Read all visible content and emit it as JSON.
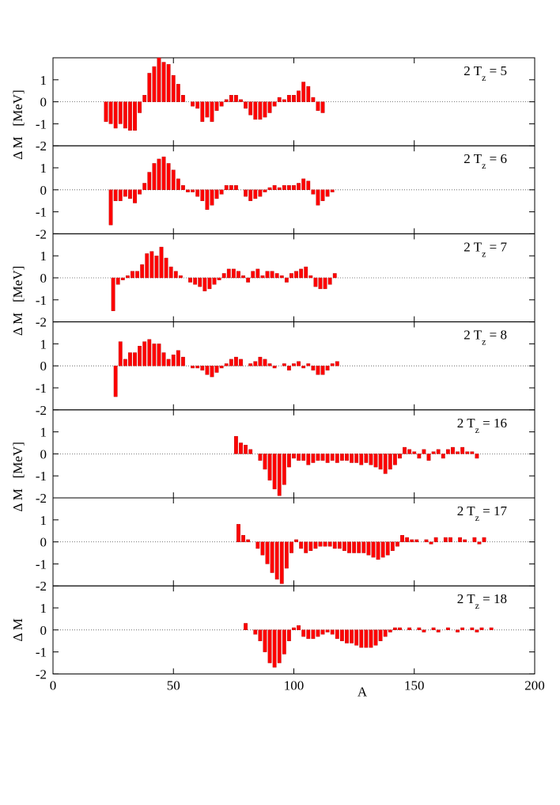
{
  "chart_data": [
    {
      "type": "bar",
      "title": "2 Tz = 5",
      "ylabel": "Δ M   [MeV]",
      "color": "#ff0000",
      "x": [
        22,
        24,
        26,
        28,
        30,
        32,
        34,
        36,
        38,
        40,
        42,
        44,
        46,
        48,
        50,
        52,
        54,
        56,
        58,
        60,
        62,
        64,
        66,
        68,
        70,
        72,
        74,
        76,
        78,
        80,
        82,
        84,
        86,
        88,
        90,
        92,
        94,
        96,
        98,
        100,
        102,
        104,
        106,
        108,
        110,
        112
      ],
      "values": [
        -0.9,
        -1.0,
        -1.2,
        -1.0,
        -1.2,
        -1.3,
        -1.3,
        -0.5,
        0.3,
        1.3,
        1.6,
        2.0,
        1.8,
        1.7,
        1.2,
        0.8,
        0.3,
        0.0,
        -0.2,
        -0.3,
        -0.9,
        -0.7,
        -0.9,
        -0.4,
        -0.2,
        0.1,
        0.3,
        0.3,
        0.1,
        -0.3,
        -0.6,
        -0.8,
        -0.8,
        -0.7,
        -0.5,
        -0.2,
        0.2,
        0.1,
        0.3,
        0.3,
        0.5,
        0.9,
        0.7,
        0.2,
        -0.4,
        -0.5
      ],
      "xlim": [
        0,
        200
      ],
      "xticks": [
        0,
        50,
        100,
        150,
        200
      ],
      "ylim": [
        -2,
        2
      ],
      "yticks": [
        -2,
        -1,
        0,
        1
      ],
      "zero_line": true
    },
    {
      "type": "bar",
      "title": "2 Tz = 6",
      "color": "#ff0000",
      "x": [
        24,
        26,
        28,
        30,
        32,
        34,
        36,
        38,
        40,
        42,
        44,
        46,
        48,
        50,
        52,
        54,
        56,
        58,
        60,
        62,
        64,
        66,
        68,
        70,
        72,
        74,
        76,
        78,
        80,
        82,
        84,
        86,
        88,
        90,
        92,
        94,
        96,
        98,
        100,
        102,
        104,
        106,
        108,
        110,
        112,
        114,
        116
      ],
      "values": [
        -1.6,
        -0.5,
        -0.5,
        -0.3,
        -0.4,
        -0.6,
        -0.2,
        0.3,
        0.8,
        1.2,
        1.4,
        1.5,
        1.2,
        0.9,
        0.5,
        0.2,
        -0.1,
        -0.1,
        -0.3,
        -0.5,
        -0.9,
        -0.7,
        -0.4,
        -0.2,
        0.2,
        0.2,
        0.2,
        0.0,
        -0.3,
        -0.5,
        -0.4,
        -0.3,
        -0.1,
        0.1,
        0.2,
        0.1,
        0.2,
        0.2,
        0.2,
        0.3,
        0.5,
        0.4,
        -0.2,
        -0.7,
        -0.5,
        -0.3,
        -0.1
      ],
      "xlim": [
        0,
        200
      ],
      "xticks": [
        0,
        50,
        100,
        150,
        200
      ],
      "ylim": [
        -2,
        2
      ],
      "yticks": [
        -2,
        -1,
        0,
        1
      ],
      "zero_line": true
    },
    {
      "type": "bar",
      "title": "2 Tz = 7",
      "ylabel": "Δ M   [MeV]",
      "color": "#ff0000",
      "x": [
        25,
        27,
        29,
        31,
        33,
        35,
        37,
        39,
        41,
        43,
        45,
        47,
        49,
        51,
        53,
        55,
        57,
        59,
        61,
        63,
        65,
        67,
        69,
        71,
        73,
        75,
        77,
        79,
        81,
        83,
        85,
        87,
        89,
        91,
        93,
        95,
        97,
        99,
        101,
        103,
        105,
        107,
        109,
        111,
        113,
        115,
        117
      ],
      "values": [
        -1.5,
        -0.3,
        -0.1,
        0.1,
        0.3,
        0.3,
        0.6,
        1.1,
        1.2,
        1.0,
        1.4,
        0.9,
        0.5,
        0.3,
        0.1,
        0.0,
        -0.2,
        -0.3,
        -0.4,
        -0.6,
        -0.5,
        -0.3,
        -0.1,
        0.2,
        0.4,
        0.4,
        0.3,
        0.1,
        -0.2,
        0.3,
        0.4,
        0.1,
        0.3,
        0.3,
        0.2,
        0.1,
        -0.2,
        0.2,
        0.3,
        0.4,
        0.5,
        0.1,
        -0.4,
        -0.5,
        -0.5,
        -0.3,
        0.2
      ],
      "xlim": [
        0,
        200
      ],
      "xticks": [
        0,
        50,
        100,
        150,
        200
      ],
      "ylim": [
        -2,
        2
      ],
      "yticks": [
        -2,
        -1,
        0,
        1
      ],
      "zero_line": true
    },
    {
      "type": "bar",
      "title": "2 Tz = 8",
      "color": "#ff0000",
      "x": [
        26,
        28,
        30,
        32,
        34,
        36,
        38,
        40,
        42,
        44,
        46,
        48,
        50,
        52,
        54,
        56,
        58,
        60,
        62,
        64,
        66,
        68,
        70,
        72,
        74,
        76,
        78,
        80,
        82,
        84,
        86,
        88,
        90,
        92,
        94,
        96,
        98,
        100,
        102,
        104,
        106,
        108,
        110,
        112,
        114,
        116,
        118
      ],
      "values": [
        -1.4,
        1.1,
        0.3,
        0.6,
        0.6,
        0.9,
        1.1,
        1.2,
        1.0,
        1.0,
        0.6,
        0.3,
        0.5,
        0.7,
        0.4,
        0.0,
        -0.1,
        -0.1,
        -0.2,
        -0.4,
        -0.5,
        -0.3,
        -0.1,
        0.1,
        0.3,
        0.4,
        0.3,
        0.0,
        0.1,
        0.2,
        0.4,
        0.3,
        0.1,
        -0.1,
        0.0,
        0.1,
        -0.2,
        0.1,
        0.2,
        -0.1,
        0.1,
        -0.2,
        -0.4,
        -0.4,
        -0.2,
        0.1,
        0.2
      ],
      "xlim": [
        0,
        200
      ],
      "xticks": [
        0,
        50,
        100,
        150,
        200
      ],
      "ylim": [
        -2,
        2
      ],
      "yticks": [
        -2,
        -1,
        0,
        1
      ],
      "zero_line": true
    },
    {
      "type": "bar",
      "title": "2 Tz = 16",
      "ylabel": "Δ M   [MeV]",
      "color": "#ff0000",
      "x": [
        76,
        78,
        80,
        82,
        84,
        86,
        88,
        90,
        92,
        94,
        96,
        98,
        100,
        102,
        104,
        106,
        108,
        110,
        112,
        114,
        116,
        118,
        120,
        122,
        124,
        126,
        128,
        130,
        132,
        134,
        136,
        138,
        140,
        142,
        144,
        146,
        148,
        150,
        152,
        154,
        156,
        158,
        160,
        162,
        164,
        166,
        168,
        170,
        172,
        174,
        176
      ],
      "values": [
        0.8,
        0.5,
        0.4,
        0.2,
        0.0,
        -0.3,
        -0.7,
        -1.2,
        -1.6,
        -1.9,
        -1.4,
        -0.6,
        -0.2,
        -0.3,
        -0.3,
        -0.5,
        -0.4,
        -0.3,
        -0.3,
        -0.4,
        -0.3,
        -0.4,
        -0.3,
        -0.3,
        -0.4,
        -0.4,
        -0.5,
        -0.4,
        -0.5,
        -0.6,
        -0.7,
        -0.9,
        -0.7,
        -0.5,
        -0.2,
        0.3,
        0.2,
        0.1,
        -0.2,
        0.2,
        -0.3,
        0.1,
        0.2,
        -0.2,
        0.2,
        0.3,
        0.1,
        0.3,
        0.1,
        0.1,
        -0.2
      ],
      "xlim": [
        0,
        200
      ],
      "xticks": [
        0,
        50,
        100,
        150,
        200
      ],
      "ylim": [
        -2,
        2
      ],
      "yticks": [
        -2,
        -1,
        0,
        1
      ],
      "zero_line": true
    },
    {
      "type": "bar",
      "title": "2 Tz = 17",
      "color": "#ff0000",
      "x": [
        77,
        79,
        81,
        83,
        85,
        87,
        89,
        91,
        93,
        95,
        97,
        99,
        101,
        103,
        105,
        107,
        109,
        111,
        113,
        115,
        117,
        119,
        121,
        123,
        125,
        127,
        129,
        131,
        133,
        135,
        137,
        139,
        141,
        143,
        145,
        147,
        149,
        151,
        153,
        155,
        157,
        159,
        161,
        163,
        165,
        167,
        169,
        171,
        173,
        175,
        177,
        179
      ],
      "values": [
        0.8,
        0.3,
        0.1,
        0.0,
        -0.3,
        -0.6,
        -1.0,
        -1.4,
        -1.7,
        -1.9,
        -1.2,
        -0.5,
        0.1,
        -0.3,
        -0.5,
        -0.4,
        -0.3,
        -0.2,
        -0.2,
        -0.2,
        -0.3,
        -0.3,
        -0.4,
        -0.5,
        -0.5,
        -0.5,
        -0.5,
        -0.6,
        -0.7,
        -0.8,
        -0.7,
        -0.6,
        -0.4,
        -0.2,
        0.3,
        0.2,
        0.1,
        0.1,
        0.0,
        0.1,
        -0.1,
        0.2,
        0.0,
        0.2,
        0.2,
        0.0,
        0.2,
        0.1,
        0.0,
        0.2,
        -0.1,
        0.2
      ],
      "xlim": [
        0,
        200
      ],
      "xticks": [
        0,
        50,
        100,
        150,
        200
      ],
      "ylim": [
        -2,
        2
      ],
      "yticks": [
        -2,
        -1,
        0,
        1
      ],
      "zero_line": true
    },
    {
      "type": "bar",
      "title": "2 Tz = 18",
      "ylabel": "Δ M",
      "xlabel": "A",
      "color": "#ff0000",
      "show_xtick_labels": true,
      "x": [
        80,
        82,
        84,
        86,
        88,
        90,
        92,
        94,
        96,
        98,
        100,
        102,
        104,
        106,
        108,
        110,
        112,
        114,
        116,
        118,
        120,
        122,
        124,
        126,
        128,
        130,
        132,
        134,
        136,
        138,
        140,
        142,
        144,
        146,
        148,
        150,
        152,
        154,
        156,
        158,
        160,
        162,
        164,
        166,
        168,
        170,
        172,
        174,
        176,
        178,
        180,
        182
      ],
      "values": [
        0.3,
        0.0,
        -0.2,
        -0.5,
        -1.0,
        -1.5,
        -1.7,
        -1.5,
        -1.1,
        -0.5,
        0.1,
        0.2,
        -0.3,
        -0.4,
        -0.4,
        -0.3,
        -0.2,
        -0.1,
        -0.2,
        -0.4,
        -0.5,
        -0.6,
        -0.6,
        -0.7,
        -0.8,
        -0.8,
        -0.8,
        -0.7,
        -0.5,
        -0.3,
        -0.1,
        0.1,
        0.1,
        0.0,
        0.1,
        0.0,
        0.1,
        -0.1,
        0.0,
        0.1,
        -0.1,
        0.0,
        0.1,
        0.0,
        -0.1,
        0.1,
        0.0,
        0.1,
        -0.1,
        0.1,
        0.0,
        0.1
      ],
      "xlim": [
        0,
        200
      ],
      "xticks": [
        0,
        50,
        100,
        150,
        200
      ],
      "ylim": [
        -2,
        2
      ],
      "yticks": [
        -2,
        -1,
        0,
        1
      ],
      "zero_line": true
    }
  ]
}
